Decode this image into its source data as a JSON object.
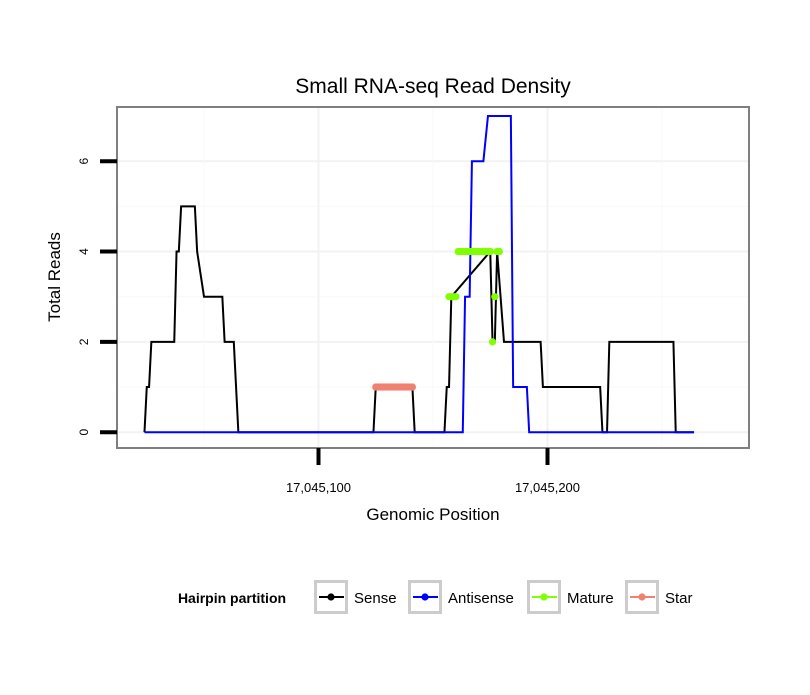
{
  "chart_data": {
    "type": "line",
    "title": "Small RNA-seq Read Density",
    "xlabel": "Genomic Position",
    "ylabel": "Total Reads",
    "xlim": [
      17045012,
      17045288
    ],
    "ylim": [
      -0.35,
      7.2
    ],
    "x_ticks": [
      {
        "value": 17045100,
        "label": "17,045,100"
      },
      {
        "value": 17045200,
        "label": "17,045,200"
      }
    ],
    "y_ticks": [
      {
        "value": 0,
        "label": "0"
      },
      {
        "value": 2,
        "label": "2"
      },
      {
        "value": 4,
        "label": "4"
      },
      {
        "value": 6,
        "label": "6"
      }
    ],
    "legend": {
      "title": "Hairpin partition",
      "position": "bottom",
      "entries": [
        "Sense",
        "Antisense",
        "Mature",
        "Star"
      ]
    },
    "series": [
      {
        "name": "Sense",
        "color": "#000000",
        "style": "line",
        "x": [
          17045024,
          17045025,
          17045026,
          17045027,
          17045028,
          17045037,
          17045038,
          17045039,
          17045040,
          17045046,
          17045047,
          17045050,
          17045051,
          17045058,
          17045059,
          17045063,
          17045065,
          17045124,
          17045125,
          17045141,
          17045142,
          17045155,
          17045156,
          17045157,
          17045158,
          17045175,
          17045176,
          17045177,
          17045178,
          17045181,
          17045182,
          17045184,
          17045185,
          17045197,
          17045198,
          17045223,
          17045224,
          17045226,
          17045227,
          17045255,
          17045256,
          17045264
        ],
        "y": [
          0,
          1,
          1,
          2,
          2,
          2,
          4,
          4,
          5,
          5,
          4,
          3,
          3,
          3,
          2,
          2,
          0,
          0,
          1,
          1,
          0,
          0,
          1,
          1,
          3,
          4,
          2,
          2,
          4,
          2,
          2,
          2,
          2,
          2,
          1,
          1,
          0,
          0,
          2,
          2,
          0,
          0
        ]
      },
      {
        "name": "Antisense",
        "color": "#0000ff",
        "style": "line",
        "x": [
          17045024,
          17045163,
          17045164,
          17045166,
          17045167,
          17045171,
          17045172,
          17045174,
          17045175,
          17045184,
          17045185,
          17045191,
          17045192,
          17045264
        ],
        "y": [
          0,
          0,
          3,
          3,
          6,
          6,
          6,
          7,
          7,
          7,
          1,
          1,
          0,
          0
        ]
      },
      {
        "name": "Mature",
        "color": "#7fff00",
        "style": "points",
        "x": [
          17045157,
          17045158,
          17045159,
          17045160,
          17045161,
          17045162,
          17045163,
          17045164,
          17045165,
          17045166,
          17045167,
          17045168,
          17045169,
          17045170,
          17045171,
          17045172,
          17045173,
          17045174,
          17045175,
          17045176,
          17045177,
          17045178,
          17045179
        ],
        "y": [
          3,
          3,
          3,
          3,
          4,
          4,
          4,
          4,
          4,
          4,
          4,
          4,
          4,
          4,
          4,
          4,
          4,
          4,
          4,
          2,
          3,
          4,
          4
        ]
      },
      {
        "name": "Star",
        "color": "#f08070",
        "style": "points",
        "x": [
          17045125,
          17045126,
          17045127,
          17045128,
          17045129,
          17045130,
          17045131,
          17045132,
          17045133,
          17045134,
          17045135,
          17045136,
          17045137,
          17045138,
          17045139,
          17045140,
          17045141
        ],
        "y": [
          1,
          1,
          1,
          1,
          1,
          1,
          1,
          1,
          1,
          1,
          1,
          1,
          1,
          1,
          1,
          1,
          1
        ]
      }
    ]
  }
}
